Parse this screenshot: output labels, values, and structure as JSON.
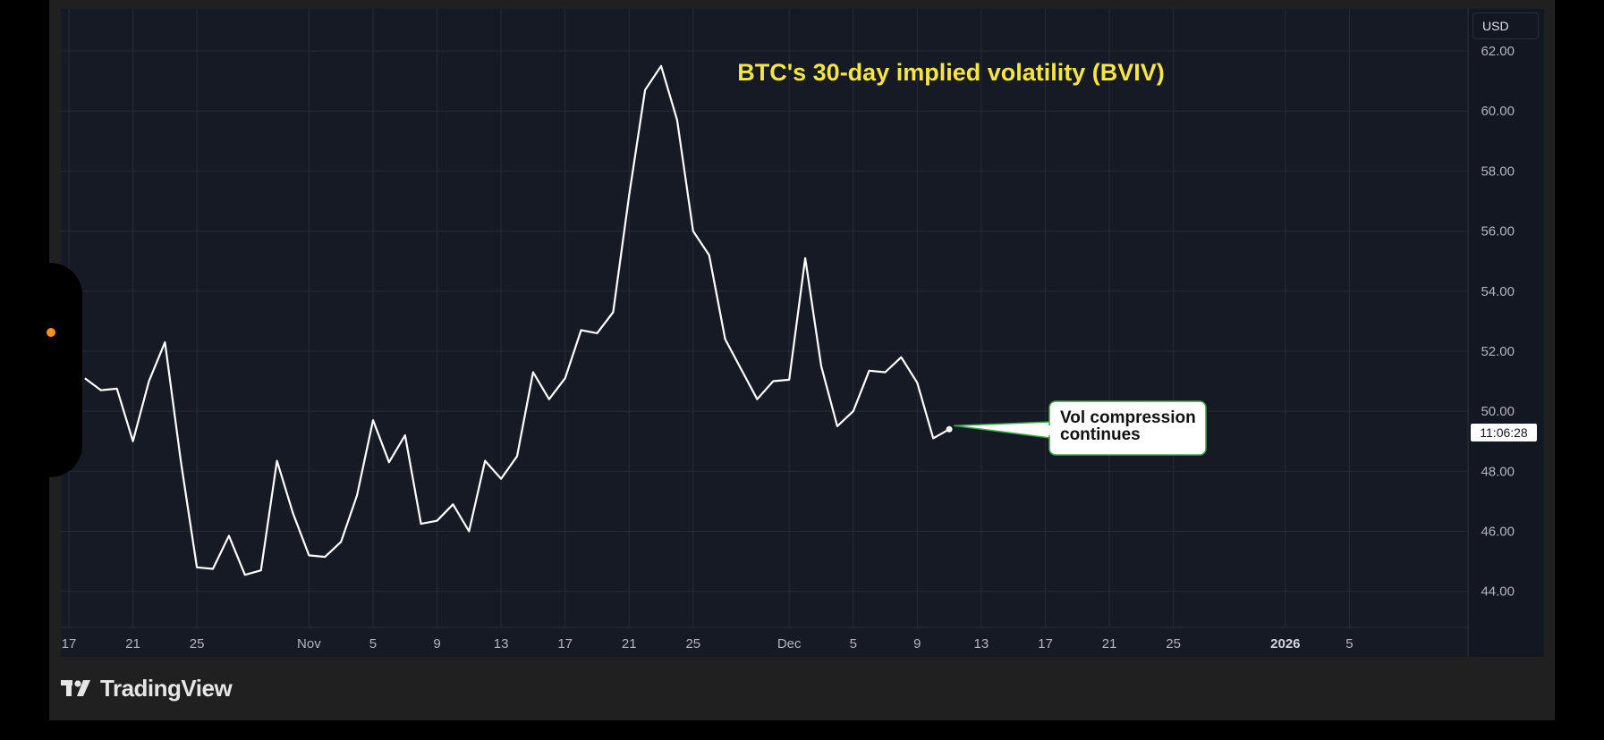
{
  "header": {
    "caption": ""
  },
  "currency": "USD",
  "price_label": "11:06:28",
  "brand": "TradingView",
  "callout": {
    "line1": "Vol compression",
    "line2": "continues"
  },
  "chart_data": {
    "type": "line",
    "title": "BTC's 30-day implied volatility (BVIV)",
    "ylim": [
      42.8,
      63.4
    ],
    "y_ticks": [
      44,
      46,
      48,
      50,
      52,
      54,
      56,
      58,
      60,
      62
    ],
    "y_tick_labels": [
      "44.00",
      "46.00",
      "48.00",
      "50.00",
      "52.00",
      "54.00",
      "56.00",
      "58.00",
      "60.00",
      "62.00"
    ],
    "x_tick_labels": [
      {
        "label": "17",
        "date": "2025-10-17"
      },
      {
        "label": "21",
        "date": "2025-10-21"
      },
      {
        "label": "25",
        "date": "2025-10-25"
      },
      {
        "label": "Nov",
        "date": "2025-11-01"
      },
      {
        "label": "5",
        "date": "2025-11-05"
      },
      {
        "label": "9",
        "date": "2025-11-09"
      },
      {
        "label": "13",
        "date": "2025-11-13"
      },
      {
        "label": "17",
        "date": "2025-11-17"
      },
      {
        "label": "21",
        "date": "2025-11-21"
      },
      {
        "label": "25",
        "date": "2025-11-25"
      },
      {
        "label": "Dec",
        "date": "2025-12-01"
      },
      {
        "label": "5",
        "date": "2025-12-05"
      },
      {
        "label": "9",
        "date": "2025-12-09"
      },
      {
        "label": "13",
        "date": "2025-12-13"
      },
      {
        "label": "17",
        "date": "2025-12-17"
      },
      {
        "label": "21",
        "date": "2025-12-21"
      },
      {
        "label": "25",
        "date": "2025-12-25"
      },
      {
        "label": "2026",
        "date": "2026-01-01",
        "bold": true
      },
      {
        "label": "5",
        "date": "2026-01-05"
      }
    ],
    "x_range": [
      "2025-10-17",
      "2026-01-09"
    ],
    "series": [
      {
        "line_color": "#ffffff",
        "points": [
          [
            "2025-10-18",
            51.1
          ],
          [
            "2025-10-19",
            50.7
          ],
          [
            "2025-10-20",
            50.75
          ],
          [
            "2025-10-21",
            49.0
          ],
          [
            "2025-10-22",
            51.0
          ],
          [
            "2025-10-23",
            52.3
          ],
          [
            "2025-10-24",
            48.3
          ],
          [
            "2025-10-25",
            44.8
          ],
          [
            "2025-10-26",
            44.75
          ],
          [
            "2025-10-27",
            45.85
          ],
          [
            "2025-10-28",
            44.55
          ],
          [
            "2025-10-29",
            44.7
          ],
          [
            "2025-10-30",
            48.35
          ],
          [
            "2025-10-31",
            46.6
          ],
          [
            "2025-11-01",
            45.2
          ],
          [
            "2025-11-02",
            45.15
          ],
          [
            "2025-11-03",
            45.65
          ],
          [
            "2025-11-04",
            47.2
          ],
          [
            "2025-11-05",
            49.7
          ],
          [
            "2025-11-06",
            48.3
          ],
          [
            "2025-11-07",
            49.2
          ],
          [
            "2025-11-08",
            46.25
          ],
          [
            "2025-11-09",
            46.35
          ],
          [
            "2025-11-10",
            46.9
          ],
          [
            "2025-11-11",
            46.0
          ],
          [
            "2025-11-12",
            48.35
          ],
          [
            "2025-11-13",
            47.75
          ],
          [
            "2025-11-14",
            48.5
          ],
          [
            "2025-11-15",
            51.3
          ],
          [
            "2025-11-16",
            50.4
          ],
          [
            "2025-11-17",
            51.1
          ],
          [
            "2025-11-18",
            52.7
          ],
          [
            "2025-11-19",
            52.6
          ],
          [
            "2025-11-20",
            53.3
          ],
          [
            "2025-11-21",
            57.2
          ],
          [
            "2025-11-22",
            60.7
          ],
          [
            "2025-11-23",
            61.5
          ],
          [
            "2025-11-24",
            59.7
          ],
          [
            "2025-11-25",
            56.0
          ],
          [
            "2025-11-26",
            55.2
          ],
          [
            "2025-11-27",
            52.4
          ],
          [
            "2025-11-28",
            51.4
          ],
          [
            "2025-11-29",
            50.4
          ],
          [
            "2025-11-30",
            51.0
          ],
          [
            "2025-12-01",
            51.05
          ],
          [
            "2025-12-02",
            55.1
          ],
          [
            "2025-12-03",
            51.5
          ],
          [
            "2025-12-04",
            49.5
          ],
          [
            "2025-12-05",
            50.0
          ],
          [
            "2025-12-06",
            51.35
          ],
          [
            "2025-12-07",
            51.3
          ],
          [
            "2025-12-08",
            51.8
          ],
          [
            "2025-12-09",
            50.95
          ],
          [
            "2025-12-10",
            49.1
          ],
          [
            "2025-12-11",
            49.4
          ]
        ]
      }
    ],
    "colors": {
      "plot_bg": "#161a25",
      "grid": "#272b36",
      "axis_text": "#b2b5be",
      "title": "#f6e542",
      "callout_border": "#3fa34d"
    }
  }
}
